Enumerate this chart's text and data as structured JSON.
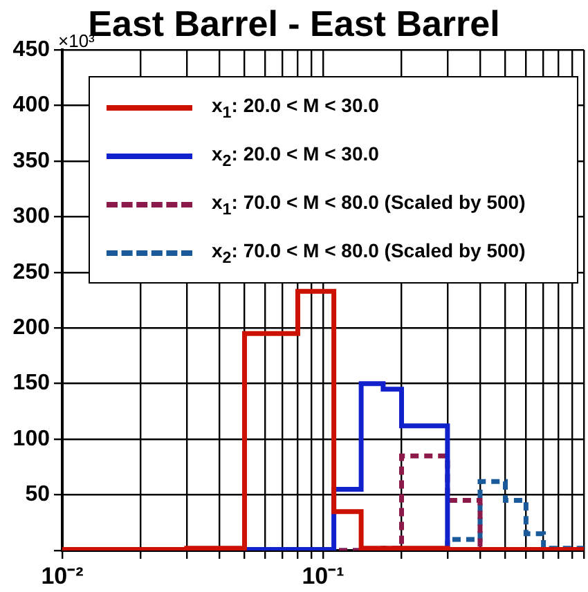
{
  "chart_data": {
    "type": "histogram",
    "title": "East Barrel - East Barrel",
    "bins": [
      0.01,
      0.03,
      0.05,
      0.08,
      0.11,
      0.14,
      0.17,
      0.2,
      0.3,
      0.4,
      0.5,
      0.6,
      0.7,
      1.0
    ],
    "series": [
      {
        "name": "x$_{1}$: 20.0 < M < 30.0",
        "color": "#cc1100",
        "line_style": "solid",
        "values": [
          1,
          2,
          195,
          233,
          35,
          2,
          2,
          2,
          1,
          1,
          1,
          1,
          1
        ]
      },
      {
        "name": "x$_{2}$: 20.0 < M < 30.0",
        "color": "#1122cc",
        "line_style": "solid",
        "values": [
          1,
          1,
          1,
          1,
          55,
          150,
          145,
          112,
          1,
          1,
          1,
          1,
          1
        ]
      },
      {
        "name": "x$_{1}$: 70.0 < M < 80.0 (Scaled by 500)",
        "color": "#8b1a4a",
        "line_style": "dashed",
        "values": [
          0,
          0,
          0,
          0,
          0,
          1,
          2,
          85,
          45,
          0,
          0,
          0,
          0
        ]
      },
      {
        "name": "x$_{2}$: 70.0 < M < 80.0 (Scaled by 500)",
        "color": "#1a5a9a",
        "line_style": "dashed",
        "values": [
          0,
          0,
          0,
          0,
          0,
          0,
          0,
          1,
          10,
          62,
          45,
          15,
          2
        ]
      }
    ],
    "log": "x",
    "xlim": [
      0.01,
      1
    ],
    "xticks": [
      {
        "value": 0.01,
        "label": "10⁻²"
      },
      {
        "value": 0.02,
        "label": null
      },
      {
        "value": 0.03,
        "label": null
      },
      {
        "value": 0.04,
        "label": null
      },
      {
        "value": 0.05,
        "label": null
      },
      {
        "value": 0.06,
        "label": null
      },
      {
        "value": 0.07,
        "label": null
      },
      {
        "value": 0.08,
        "label": null
      },
      {
        "value": 0.09,
        "label": null
      },
      {
        "value": 0.1,
        "label": "10⁻¹"
      },
      {
        "value": 0.2,
        "label": null
      },
      {
        "value": 0.3,
        "label": null
      },
      {
        "value": 0.4,
        "label": null
      },
      {
        "value": 0.5,
        "label": null
      },
      {
        "value": 0.6,
        "label": null
      },
      {
        "value": 0.7,
        "label": null
      },
      {
        "value": 0.8,
        "label": null
      },
      {
        "value": 0.9,
        "label": null
      },
      {
        "value": 1,
        "label": null
      }
    ],
    "ylim": [
      0,
      450
    ],
    "yticks": [
      {
        "value": 0,
        "label": null
      },
      50,
      100,
      150,
      200,
      250,
      300,
      350,
      400,
      450
    ],
    "grid": true,
    "legend": "top",
    "annotations": [
      "×10³"
    ]
  }
}
